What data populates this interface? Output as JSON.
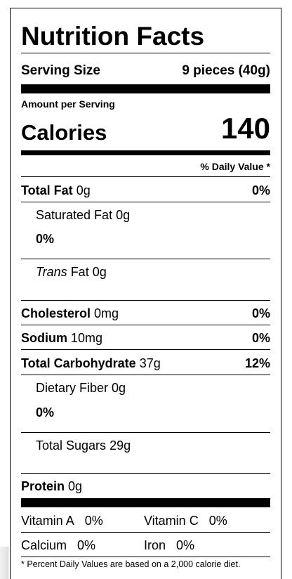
{
  "title": "Nutrition Facts",
  "serving": {
    "label": "Serving Size",
    "value": "9 pieces (40g)"
  },
  "amount_per_serving": "Amount per Serving",
  "calories": {
    "label": "Calories",
    "value": "140"
  },
  "daily_value_header": "% Daily Value *",
  "nutrients": {
    "total_fat": {
      "label": "Total Fat",
      "amount": "0g",
      "dv": "0%"
    },
    "saturated_fat": {
      "label": "Saturated Fat",
      "amount": "0g",
      "dv": "0%"
    },
    "trans_fat": {
      "label_italic": "Trans",
      "label_rest": " Fat",
      "amount": "0g"
    },
    "cholesterol": {
      "label": "Cholesterol",
      "amount": "0mg",
      "dv": "0%"
    },
    "sodium": {
      "label": "Sodium",
      "amount": "10mg",
      "dv": "0%"
    },
    "total_carbohydrate": {
      "label": "Total Carbohydrate",
      "amount": "37g",
      "dv": "12%"
    },
    "dietary_fiber": {
      "label": "Dietary Fiber",
      "amount": "0g",
      "dv": "0%"
    },
    "total_sugars": {
      "label": "Total Sugars",
      "amount": "29g"
    },
    "protein": {
      "label": "Protein",
      "amount": "0g"
    }
  },
  "vitamins": {
    "vitamin_a": {
      "label": "Vitamin A",
      "dv": "0%"
    },
    "vitamin_c": {
      "label": "Vitamin C",
      "dv": "0%"
    },
    "calcium": {
      "label": "Calcium",
      "dv": "0%"
    },
    "iron": {
      "label": "Iron",
      "dv": "0%"
    }
  },
  "footnote": "* Percent Daily Values are based on a 2,000 calorie diet."
}
